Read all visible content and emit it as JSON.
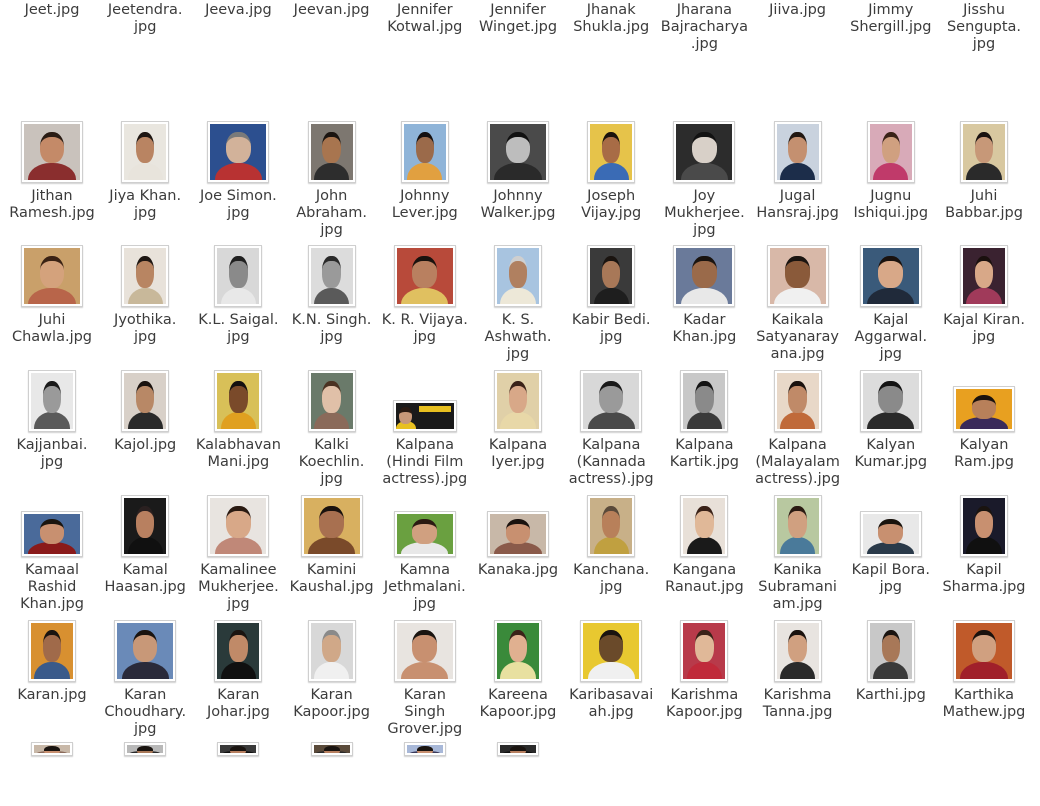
{
  "files": [
    {
      "row": 0,
      "col": 0,
      "label": "Jeet.jpg",
      "thumb": null
    },
    {
      "row": 0,
      "col": 1,
      "label": "Jeetendra.\njpg",
      "thumb": null
    },
    {
      "row": 0,
      "col": 2,
      "label": "Jeeva.jpg",
      "thumb": null
    },
    {
      "row": 0,
      "col": 3,
      "label": "Jeevan.jpg",
      "thumb": null
    },
    {
      "row": 0,
      "col": 4,
      "label": "Jennifer\nKotwal.jpg",
      "thumb": null
    },
    {
      "row": 0,
      "col": 5,
      "label": "Jennifer\nWinget.jpg",
      "thumb": null
    },
    {
      "row": 0,
      "col": 6,
      "label": "Jhanak\nShukla.jpg",
      "thumb": null
    },
    {
      "row": 0,
      "col": 7,
      "label": "Jharana\nBajracharya\n.jpg",
      "thumb": null
    },
    {
      "row": 0,
      "col": 8,
      "label": "Jiiva.jpg",
      "thumb": null
    },
    {
      "row": 0,
      "col": 9,
      "label": "Jimmy\nShergill.jpg",
      "thumb": null
    },
    {
      "row": 0,
      "col": 10,
      "label": "Jisshu\nSengupta.\njpg",
      "thumb": null
    },
    {
      "row": 1,
      "col": 0,
      "label": "Jithan\nRamesh.jpg",
      "thumb": {
        "shape": "square",
        "bg": "#c9c2bc",
        "skin": "#c48a68",
        "hair": "#2a1c14",
        "shirt": "#8a2e2e"
      }
    },
    {
      "row": 1,
      "col": 1,
      "label": "Jiya Khan.\njpg",
      "thumb": {
        "shape": "portrait",
        "bg": "#e9e6df",
        "skin": "#b98462",
        "hair": "#1e1612",
        "shirt": "#e8e4dc"
      }
    },
    {
      "row": 1,
      "col": 2,
      "label": "Joe Simon.\njpg",
      "thumb": {
        "shape": "square",
        "bg": "#2c4f8f",
        "skin": "#d2b29a",
        "hair": "#7a7a7a",
        "shirt": "#b83232"
      }
    },
    {
      "row": 1,
      "col": 3,
      "label": "John\nAbraham.\njpg",
      "thumb": {
        "shape": "portrait",
        "bg": "#7d7770",
        "skin": "#a8754f",
        "hair": "#1a1410",
        "shirt": "#2d2d2d"
      }
    },
    {
      "row": 1,
      "col": 4,
      "label": "Johnny\nLever.jpg",
      "thumb": {
        "shape": "portrait",
        "bg": "#8fb4d8",
        "skin": "#9b6a4a",
        "hair": "#141010",
        "shirt": "#e1a040"
      }
    },
    {
      "row": 1,
      "col": 5,
      "label": "Johnny\nWalker.jpg",
      "thumb": {
        "shape": "square",
        "bg": "#4a4a4a",
        "skin": "#bdbdbd",
        "hair": "#111111",
        "shirt": "#2a2a2a"
      }
    },
    {
      "row": 1,
      "col": 6,
      "label": "Joseph\nVijay.jpg",
      "thumb": {
        "shape": "portrait",
        "bg": "#e6c34a",
        "skin": "#a86c46",
        "hair": "#1a120c",
        "shirt": "#3a6bb5"
      }
    },
    {
      "row": 1,
      "col": 7,
      "label": "Joy\nMukherjee.\njpg",
      "thumb": {
        "shape": "square",
        "bg": "#2c2c2c",
        "skin": "#d8d0c8",
        "hair": "#121212",
        "shirt": "#4a4a4a"
      }
    },
    {
      "row": 1,
      "col": 8,
      "label": "Jugal\nHansraj.jpg",
      "thumb": {
        "shape": "portrait",
        "bg": "#c9d2de",
        "skin": "#c49070",
        "hair": "#221812",
        "shirt": "#1c2d4a"
      }
    },
    {
      "row": 1,
      "col": 9,
      "label": "Jugnu\nIshiqui.jpg",
      "thumb": {
        "shape": "portrait",
        "bg": "#d8aab8",
        "skin": "#d0a080",
        "hair": "#3a2218",
        "shirt": "#c03a6a"
      }
    },
    {
      "row": 1,
      "col": 10,
      "label": "Juhi\nBabbar.jpg",
      "thumb": {
        "shape": "portrait",
        "bg": "#d8c8a0",
        "skin": "#c79878",
        "hair": "#1a1210",
        "shirt": "#2a2a2a"
      }
    },
    {
      "row": 2,
      "col": 0,
      "label": "Juhi\nChawla.jpg",
      "thumb": {
        "shape": "square",
        "bg": "#c9a06a",
        "skin": "#d4a27c",
        "hair": "#3a2214",
        "shirt": "#b8654a"
      }
    },
    {
      "row": 2,
      "col": 1,
      "label": "Jyothika.\njpg",
      "thumb": {
        "shape": "portrait",
        "bg": "#e8e2da",
        "skin": "#b88562",
        "hair": "#1e1612",
        "shirt": "#c8b89a"
      }
    },
    {
      "row": 2,
      "col": 2,
      "label": "K.L. Saigal.\njpg",
      "thumb": {
        "shape": "portrait",
        "bg": "#d8d8d8",
        "skin": "#8a8a8a",
        "hair": "#202020",
        "shirt": "#e8e8e8"
      }
    },
    {
      "row": 2,
      "col": 3,
      "label": "K.N. Singh.\njpg",
      "thumb": {
        "shape": "portrait",
        "bg": "#dcdcdc",
        "skin": "#9a9a9a",
        "hair": "#2a2a2a",
        "shirt": "#5a5a5a"
      }
    },
    {
      "row": 2,
      "col": 4,
      "label": "K. R. Vijaya.\njpg",
      "thumb": {
        "shape": "square",
        "bg": "#b84a3a",
        "skin": "#b98060",
        "hair": "#1a120e",
        "shirt": "#e0c060"
      }
    },
    {
      "row": 2,
      "col": 5,
      "label": "K. S.\nAshwath.\njpg",
      "thumb": {
        "shape": "portrait",
        "bg": "#a8c4e0",
        "skin": "#b08060",
        "hair": "#cfcfcf",
        "shirt": "#ede8d8"
      }
    },
    {
      "row": 2,
      "col": 6,
      "label": "Kabir Bedi.\njpg",
      "thumb": {
        "shape": "portrait",
        "bg": "#3a3a3a",
        "skin": "#a87858",
        "hair": "#1a1410",
        "shirt": "#1e1e1e"
      }
    },
    {
      "row": 2,
      "col": 7,
      "label": "Kadar\nKhan.jpg",
      "thumb": {
        "shape": "square",
        "bg": "#6a7a9a",
        "skin": "#9a6a4a",
        "hair": "#1a1410",
        "shirt": "#e8e8e8"
      }
    },
    {
      "row": 2,
      "col": 8,
      "label": "Kaikala\nSatyanaray\nana.jpg",
      "thumb": {
        "shape": "square",
        "bg": "#d8b8a8",
        "skin": "#8a5a3a",
        "hair": "#1a1410",
        "shirt": "#f0f0f0"
      }
    },
    {
      "row": 2,
      "col": 9,
      "label": "Kajal\nAggarwal.\njpg",
      "thumb": {
        "shape": "square",
        "bg": "#3a5a7a",
        "skin": "#d8a888",
        "hair": "#1a120e",
        "shirt": "#202a3a"
      }
    },
    {
      "row": 2,
      "col": 10,
      "label": "Kajal Kiran.\njpg",
      "thumb": {
        "shape": "portrait",
        "bg": "#3a2230",
        "skin": "#d8a888",
        "hair": "#1a100e",
        "shirt": "#a03a5a"
      }
    },
    {
      "row": 3,
      "col": 0,
      "label": "Kajjanbai.\njpg",
      "thumb": {
        "shape": "portrait",
        "bg": "#e8e8e8",
        "skin": "#9a9a9a",
        "hair": "#1a1a1a",
        "shirt": "#5a5a5a"
      }
    },
    {
      "row": 3,
      "col": 1,
      "label": "Kajol.jpg",
      "thumb": {
        "shape": "portrait",
        "bg": "#d8d0c8",
        "skin": "#b88866",
        "hair": "#1a120e",
        "shirt": "#2a2a2a"
      }
    },
    {
      "row": 3,
      "col": 2,
      "label": "Kalabhavan\nMani.jpg",
      "thumb": {
        "shape": "portrait",
        "bg": "#d8c058",
        "skin": "#7a4a2a",
        "hair": "#141010",
        "shirt": "#e0a020"
      }
    },
    {
      "row": 3,
      "col": 3,
      "label": "Kalki\nKoechlin.\njpg",
      "thumb": {
        "shape": "portrait",
        "bg": "#6a7a6a",
        "skin": "#e0c0a8",
        "hair": "#4a3222",
        "shirt": "#8a6a5a"
      }
    },
    {
      "row": 3,
      "col": 4,
      "label": "Kalpana\n(Hindi Film\nactress).jpg",
      "thumb": {
        "shape": "banner",
        "bg": "#1a1a1a",
        "skin": "#c89878",
        "hair": "#2a1a12",
        "shirt": "#e8c020"
      }
    },
    {
      "row": 3,
      "col": 5,
      "label": "Kalpana\nIyer.jpg",
      "thumb": {
        "shape": "portrait",
        "bg": "#e0d0a8",
        "skin": "#d8a888",
        "hair": "#3a2218",
        "shirt": "#e8d8a8"
      }
    },
    {
      "row": 3,
      "col": 6,
      "label": "Kalpana\n(Kannada\nactress).jpg",
      "thumb": {
        "shape": "square",
        "bg": "#d8d8d8",
        "skin": "#9a9a9a",
        "hair": "#1a1a1a",
        "shirt": "#4a4a4a"
      }
    },
    {
      "row": 3,
      "col": 7,
      "label": "Kalpana\nKartik.jpg",
      "thumb": {
        "shape": "portrait",
        "bg": "#c8c8c8",
        "skin": "#8a8a8a",
        "hair": "#141414",
        "shirt": "#3a3a3a"
      }
    },
    {
      "row": 3,
      "col": 8,
      "label": "Kalpana\n(Malayalam\nactress).jpg",
      "thumb": {
        "shape": "portrait",
        "bg": "#e8d8c8",
        "skin": "#c08a68",
        "hair": "#1a120e",
        "shirt": "#c06a3a"
      }
    },
    {
      "row": 3,
      "col": 9,
      "label": "Kalyan\nKumar.jpg",
      "thumb": {
        "shape": "square",
        "bg": "#dcdcdc",
        "skin": "#8a8a8a",
        "hair": "#141414",
        "shirt": "#2a2a2a"
      }
    },
    {
      "row": 3,
      "col": 10,
      "label": "Kalyan\nRam.jpg",
      "thumb": {
        "shape": "wide",
        "bg": "#e8a020",
        "skin": "#b8805a",
        "hair": "#1a120e",
        "shirt": "#3a2a5a"
      }
    },
    {
      "row": 4,
      "col": 0,
      "label": "Kamaal\nRashid\nKhan.jpg",
      "thumb": {
        "shape": "wide",
        "bg": "#4a6a9a",
        "skin": "#c89070",
        "hair": "#1a140e",
        "shirt": "#8a1a1a"
      }
    },
    {
      "row": 4,
      "col": 1,
      "label": "Kamal\nHaasan.jpg",
      "thumb": {
        "shape": "portrait",
        "bg": "#1a1a1a",
        "skin": "#b88060",
        "hair": "#2a2020",
        "shirt": "#101010"
      }
    },
    {
      "row": 4,
      "col": 2,
      "label": "Kamalinee\nMukherjee.\njpg",
      "thumb": {
        "shape": "square",
        "bg": "#e8e4e0",
        "skin": "#d8a888",
        "hair": "#2a1a12",
        "shirt": "#c08878"
      }
    },
    {
      "row": 4,
      "col": 3,
      "label": "Kamini\nKaushal.jpg",
      "thumb": {
        "shape": "square",
        "bg": "#d8b060",
        "skin": "#a87050",
        "hair": "#1a120e",
        "shirt": "#7a4a2a"
      }
    },
    {
      "row": 4,
      "col": 4,
      "label": "Kamna\nJethmalani.\njpg",
      "thumb": {
        "shape": "wide",
        "bg": "#6aa040",
        "skin": "#d0a080",
        "hair": "#2a1a12",
        "shirt": "#e8e8e8"
      }
    },
    {
      "row": 4,
      "col": 5,
      "label": "Kanaka.jpg",
      "thumb": {
        "shape": "wide",
        "bg": "#c8b8a8",
        "skin": "#c89070",
        "hair": "#1a120e",
        "shirt": "#8a5a4a"
      }
    },
    {
      "row": 4,
      "col": 6,
      "label": "Kanchana.\njpg",
      "thumb": {
        "shape": "portrait",
        "bg": "#c8b088",
        "skin": "#b8805a",
        "hair": "#5a4a3a",
        "shirt": "#c0a040"
      }
    },
    {
      "row": 4,
      "col": 7,
      "label": "Kangana\nRanaut.jpg",
      "thumb": {
        "shape": "portrait",
        "bg": "#e8e0d8",
        "skin": "#e0b898",
        "hair": "#3a2218",
        "shirt": "#1a1a1a"
      }
    },
    {
      "row": 4,
      "col": 8,
      "label": "Kanika\nSubramani\nam.jpg",
      "thumb": {
        "shape": "portrait",
        "bg": "#b8c8a0",
        "skin": "#d0a080",
        "hair": "#2a1a12",
        "shirt": "#4a7a9a"
      }
    },
    {
      "row": 4,
      "col": 9,
      "label": "Kapil Bora.\njpg",
      "thumb": {
        "shape": "wide",
        "bg": "#e8e8e8",
        "skin": "#c89070",
        "hair": "#1a140e",
        "shirt": "#2a3a4a"
      }
    },
    {
      "row": 4,
      "col": 10,
      "label": "Kapil\nSharma.jpg",
      "thumb": {
        "shape": "portrait",
        "bg": "#1a1a2a",
        "skin": "#c89070",
        "hair": "#1a1410",
        "shirt": "#101010"
      }
    },
    {
      "row": 5,
      "col": 0,
      "label": "Karan.jpg",
      "thumb": {
        "shape": "portrait",
        "bg": "#d89030",
        "skin": "#a06a4a",
        "hair": "#1a1410",
        "shirt": "#3a5a8a"
      }
    },
    {
      "row": 5,
      "col": 1,
      "label": "Karan\nChoudhary.\njpg",
      "thumb": {
        "shape": "square",
        "bg": "#6a8ab8",
        "skin": "#c89878",
        "hair": "#1a1410",
        "shirt": "#2a2a3a"
      }
    },
    {
      "row": 5,
      "col": 2,
      "label": "Karan\nJohar.jpg",
      "thumb": {
        "shape": "portrait",
        "bg": "#2a3a3a",
        "skin": "#c08a68",
        "hair": "#1a1410",
        "shirt": "#101010"
      }
    },
    {
      "row": 5,
      "col": 3,
      "label": "Karan\nKapoor.jpg",
      "thumb": {
        "shape": "portrait",
        "bg": "#d8d8d8",
        "skin": "#d0a888",
        "hair": "#8a8a8a",
        "shirt": "#f0f0f0"
      }
    },
    {
      "row": 5,
      "col": 4,
      "label": "Karan\nSingh\nGrover.jpg",
      "thumb": {
        "shape": "square",
        "bg": "#e8e4e0",
        "skin": "#c89070",
        "hair": "#1a1410",
        "shirt": "#c89070"
      }
    },
    {
      "row": 5,
      "col": 5,
      "label": "Kareena\nKapoor.jpg",
      "thumb": {
        "shape": "portrait",
        "bg": "#3a8a3a",
        "skin": "#e0b090",
        "hair": "#3a2218",
        "shirt": "#e8e0a0"
      }
    },
    {
      "row": 5,
      "col": 6,
      "label": "Karibasavai\nah.jpg",
      "thumb": {
        "shape": "square",
        "bg": "#e8c830",
        "skin": "#6a4a2a",
        "hair": "#1a1410",
        "shirt": "#f0f0f0"
      }
    },
    {
      "row": 5,
      "col": 7,
      "label": "Karishma\nKapoor.jpg",
      "thumb": {
        "shape": "portrait",
        "bg": "#b83a4a",
        "skin": "#e0b898",
        "hair": "#3a2218",
        "shirt": "#c02a3a"
      }
    },
    {
      "row": 5,
      "col": 8,
      "label": "Karishma\nTanna.jpg",
      "thumb": {
        "shape": "portrait",
        "bg": "#e8e4e0",
        "skin": "#d0a080",
        "hair": "#1a120e",
        "shirt": "#2a2a2a"
      }
    },
    {
      "row": 5,
      "col": 9,
      "label": "Karthi.jpg",
      "thumb": {
        "shape": "portrait",
        "bg": "#c8c8c8",
        "skin": "#a87858",
        "hair": "#1a1410",
        "shirt": "#3a3a3a"
      }
    },
    {
      "row": 5,
      "col": 10,
      "label": "Karthika\nMathew.jpg",
      "thumb": {
        "shape": "square",
        "bg": "#c05a2a",
        "skin": "#d0a080",
        "hair": "#1a120e",
        "shirt": "#a0202a"
      }
    },
    {
      "row": 6,
      "col": 0,
      "label": "",
      "thumb": {
        "shape": "stub",
        "bg": "#c8b8a8",
        "skin": "#c89070",
        "hair": "#1a1410",
        "shirt": "#8a6a5a"
      }
    },
    {
      "row": 6,
      "col": 1,
      "label": "",
      "thumb": {
        "shape": "stub",
        "bg": "#b8b8b8",
        "skin": "#a87858",
        "hair": "#1a1410",
        "shirt": "#2a2a2a"
      }
    },
    {
      "row": 6,
      "col": 2,
      "label": "",
      "thumb": {
        "shape": "stub",
        "bg": "#3a3a3a",
        "skin": "#b88060",
        "hair": "#1a1410",
        "shirt": "#101010"
      }
    },
    {
      "row": 6,
      "col": 3,
      "label": "",
      "thumb": {
        "shape": "stub",
        "bg": "#5a4a3a",
        "skin": "#b88060",
        "hair": "#1a1410",
        "shirt": "#2a2a2a"
      }
    },
    {
      "row": 6,
      "col": 4,
      "label": "",
      "thumb": {
        "shape": "stub",
        "bg": "#a8b8d8",
        "skin": "#c89070",
        "hair": "#1a1410",
        "shirt": "#3a3a5a"
      }
    },
    {
      "row": 6,
      "col": 5,
      "label": "",
      "thumb": {
        "shape": "stub",
        "bg": "#2a2a2a",
        "skin": "#b88060",
        "hair": "#1a1410",
        "shirt": "#101010"
      }
    }
  ]
}
